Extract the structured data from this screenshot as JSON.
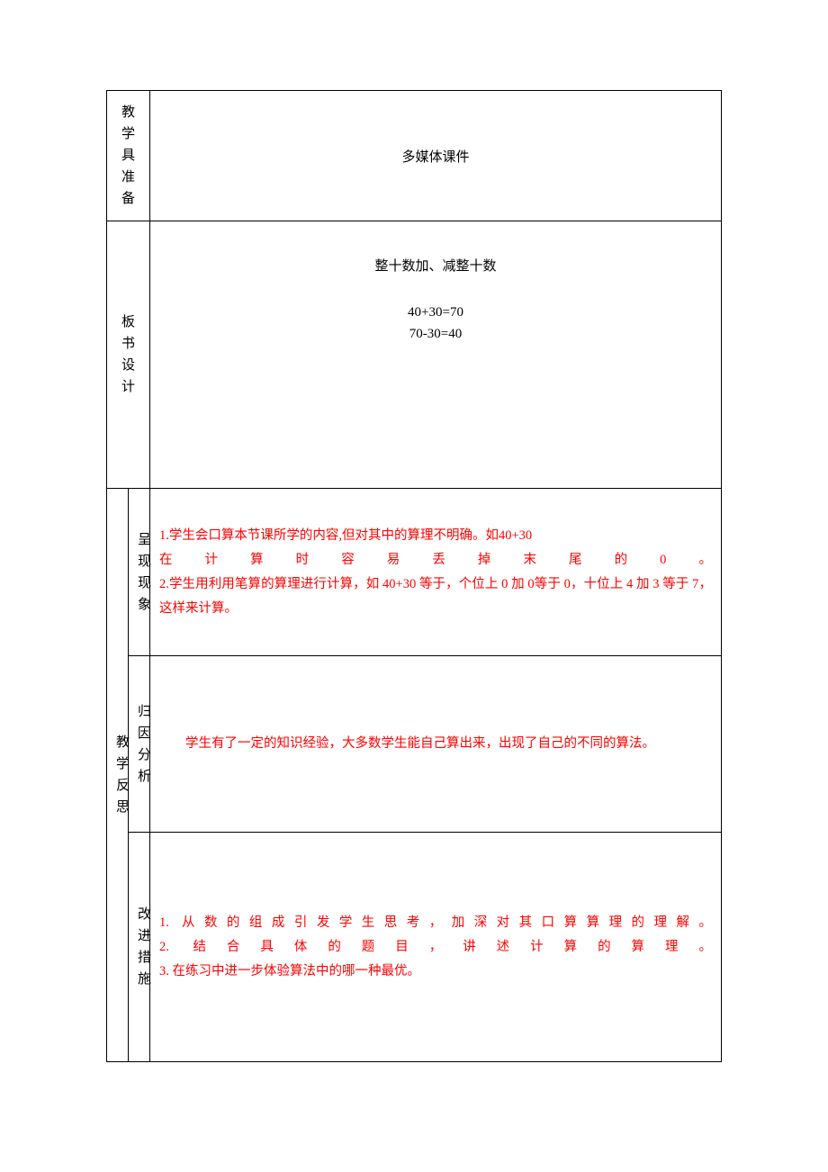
{
  "colors": {
    "text_black": "#000000",
    "text_red": "#ff0000",
    "border": "#000000",
    "background": "#ffffff"
  },
  "typography": {
    "base_font_family": "SimSun",
    "label_fontsize": 15,
    "content_fontsize": 15,
    "reflection_fontsize": 14.5
  },
  "rows": {
    "materials": {
      "label": "教学具准备",
      "content": "多媒体课件"
    },
    "board": {
      "label": "板书设计",
      "title": "整十数加、减整十数",
      "eq1": "40+30=70",
      "eq2": "70-30=40"
    },
    "reflection": {
      "label": "教学反思",
      "phenomenon": {
        "sublabel": "呈现现象",
        "line1_prefix": "1.学生会口算本节课所学的内容,但对其中的算理不明确。如",
        "line1_suffix": "40+30",
        "line2": "在计算时容易丢掉末尾的0。",
        "line3": "2.学生用利用笔算的算理进行计算，如 40+30 等于，个位上 0 加 0等于 0，十位上 4 加 3 等于 7，这样来计算。"
      },
      "cause": {
        "sublabel": "归因分析",
        "text": "学生有了一定的知识经验，大多数学生能自己算出来，出现了自己的不同的算法。"
      },
      "improve": {
        "sublabel": "改进措施",
        "line1": "1. 从数的组成引发学生思考，加深对其口算算理的理解。",
        "line2": "2. 结合具体的题目，讲述计算的算理。",
        "line3": "3. 在练习中进一步体验算法中的哪一种最优。"
      }
    }
  }
}
